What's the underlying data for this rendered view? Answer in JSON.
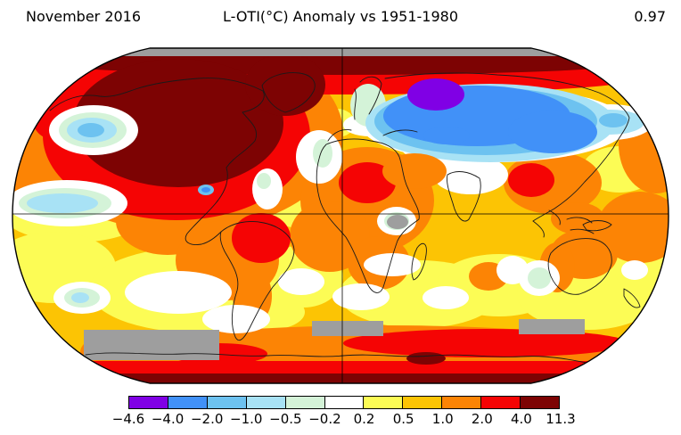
{
  "header": {
    "date_label": "November 2016",
    "title": "L-OTI(°C) Anomaly vs 1951-1980",
    "global_mean": "0.97"
  },
  "colorbar": {
    "tick_labels": [
      "−4.6",
      "−4.0",
      "−2.0",
      "−1.0",
      "−0.5",
      "−0.2",
      "0.2",
      "0.5",
      "1.0",
      "2.0",
      "4.0",
      "11.3"
    ],
    "segment_colors": [
      "#8000e5",
      "#4191f8",
      "#6dc2f0",
      "#a8e2f5",
      "#d4f3d8",
      "#ffffff",
      "#fcfc55",
      "#fcc404",
      "#fc8405",
      "#f50404",
      "#7d0303"
    ]
  },
  "palette": {
    "base": "#fcc404",
    "yellow": "#fcfc55",
    "orange": "#fc8405",
    "red": "#f50404",
    "darkred": "#7d0303",
    "white": "#ffffff",
    "palegreen": "#d4f3d8",
    "palecyan": "#a8e2f5",
    "lightblue": "#6dc2f0",
    "blue": "#4191f8",
    "purple": "#8000e5",
    "gray": "#9e9e9e",
    "coastline": "#1a1a1a",
    "gridline": "#000000",
    "outline": "#000000"
  },
  "chart_data": {
    "type": "heatmap",
    "title": "L-OTI(°C) Anomaly vs 1951-1980",
    "period": "November 2016",
    "baseline_period": "1951-1980",
    "units": "°C",
    "global_mean_anomaly_c": 0.97,
    "projection": "Robinson world map",
    "legend_position": "bottom",
    "scale_boundaries_c": [
      -4.6,
      -4.0,
      -2.0,
      -1.0,
      -0.5,
      -0.2,
      0.2,
      0.5,
      1.0,
      2.0,
      4.0,
      11.3
    ],
    "scale_colors": [
      "#8000e5",
      "#4191f8",
      "#6dc2f0",
      "#a8e2f5",
      "#d4f3d8",
      "#ffffff",
      "#fcfc55",
      "#fcc404",
      "#fc8405",
      "#f50404",
      "#7d0303"
    ],
    "missing_data_color": "#9e9e9e",
    "notable_regions": [
      {
        "region": "Northern North America / Canadian Arctic",
        "anomaly_c": "4.0 to 11.3"
      },
      {
        "region": "High Arctic rim (circumpolar band)",
        "anomaly_c": "2.0 to 11.3"
      },
      {
        "region": "Central Siberia cold core",
        "anomaly_c": "-4.6 to -4.0"
      },
      {
        "region": "Western Russia / Central Asia",
        "anomaly_c": "-2.0 to -0.5"
      },
      {
        "region": "North Pacific cool patch",
        "anomaly_c": "-1.0 to -0.2"
      },
      {
        "region": "Equatorial East Pacific (La Nina band)",
        "anomaly_c": "-0.5 to 0.2"
      },
      {
        "region": "Sahara / north-central Africa warm spot",
        "anomaly_c": "2.0 to 4.0"
      },
      {
        "region": "Northern South America / NE Brazil warm spot",
        "anomaly_c": "2.0 to 4.0"
      },
      {
        "region": "Southeast Asia warm spot",
        "anomaly_c": "2.0 to 4.0"
      },
      {
        "region": "Antarctic coast and interior",
        "anomaly_c": "2.0 to 11.3"
      },
      {
        "region": "Mid-latitude oceans",
        "anomaly_c": "0.2 to 2.0"
      },
      {
        "region": "Patches near Antarctica and East Africa",
        "anomaly_c": "no data (gray)"
      }
    ]
  }
}
